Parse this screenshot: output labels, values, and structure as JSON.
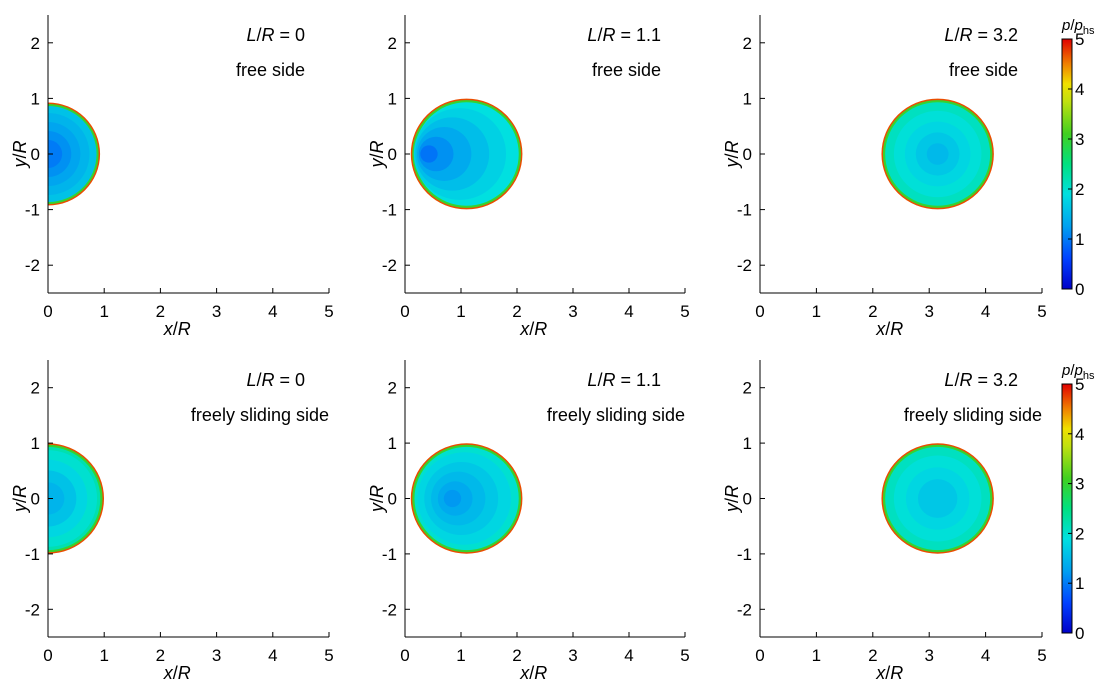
{
  "colors": {
    "colormap": [
      "#0000c8",
      "#0050f0",
      "#00a0f0",
      "#00e0e0",
      "#00e090",
      "#30d030",
      "#a0e020",
      "#f0e000",
      "#f08000",
      "#e00000"
    ],
    "axis": "#000000"
  },
  "chart_data": [
    {
      "type": "heatmap",
      "row": 0,
      "col": 0,
      "annotations": [
        "L/R = 0",
        "free side"
      ],
      "xlabel": "x/R",
      "ylabel": "y/R",
      "xlim": [
        0,
        5
      ],
      "ylim": [
        -2.5,
        2.5
      ],
      "xticks": [
        0,
        1,
        2,
        3,
        4,
        5
      ],
      "yticks": [
        -2,
        -1,
        0,
        1,
        2
      ],
      "contact": {
        "center_x": 0,
        "radius": 0.9,
        "half_domain": true
      },
      "pressure_levels": [
        {
          "p": 1.6,
          "r": 1.0
        },
        {
          "p": 1.45,
          "r": 0.82
        },
        {
          "p": 1.3,
          "r": 0.64
        },
        {
          "p": 1.15,
          "r": 0.46
        },
        {
          "p": 1.0,
          "r": 0.28
        }
      ],
      "peak": {
        "x": 0.0,
        "y": 0.0
      }
    },
    {
      "type": "heatmap",
      "row": 0,
      "col": 1,
      "annotations": [
        "L/R = 1.1",
        "free side"
      ],
      "xlabel": "x/R",
      "ylabel": "y/R",
      "xlim": [
        0,
        5
      ],
      "ylim": [
        -2.5,
        2.5
      ],
      "xticks": [
        0,
        1,
        2,
        3,
        4,
        5
      ],
      "yticks": [
        -2,
        -1,
        0,
        1,
        2
      ],
      "contact": {
        "center_x": 1.1,
        "radius": 0.97,
        "half_domain": false
      },
      "pressure_levels": [
        {
          "p": 1.9,
          "r": 1.0
        },
        {
          "p": 1.75,
          "r": 0.85
        },
        {
          "p": 1.55,
          "r": 0.68
        },
        {
          "p": 1.35,
          "r": 0.5
        },
        {
          "p": 1.15,
          "r": 0.32
        },
        {
          "p": 0.95,
          "r": 0.16
        }
      ],
      "peak": {
        "x": 0.3,
        "y": 0.0
      }
    },
    {
      "type": "heatmap",
      "row": 0,
      "col": 2,
      "annotations": [
        "L/R = 3.2",
        "free side"
      ],
      "xlabel": "x/R",
      "ylabel": "y/R",
      "xlim": [
        0,
        5
      ],
      "ylim": [
        -2.5,
        2.5
      ],
      "xticks": [
        0,
        1,
        2,
        3,
        4,
        5
      ],
      "yticks": [
        -2,
        -1,
        0,
        1,
        2
      ],
      "contact": {
        "center_x": 3.15,
        "radius": 0.97,
        "half_domain": false
      },
      "pressure_levels": [
        {
          "p": 2.1,
          "r": 1.0
        },
        {
          "p": 1.95,
          "r": 0.8
        },
        {
          "p": 1.8,
          "r": 0.6
        },
        {
          "p": 1.65,
          "r": 0.4
        },
        {
          "p": 1.5,
          "r": 0.2
        }
      ],
      "peak": {
        "x": 3.15,
        "y": 0.0
      }
    },
    {
      "type": "heatmap",
      "row": 1,
      "col": 0,
      "annotations": [
        "L/R = 0",
        "freely sliding side"
      ],
      "xlabel": "x/R",
      "ylabel": "y/R",
      "xlim": [
        0,
        5
      ],
      "ylim": [
        -2.5,
        2.5
      ],
      "xticks": [
        0,
        1,
        2,
        3,
        4,
        5
      ],
      "yticks": [
        -2,
        -1,
        0,
        1,
        2
      ],
      "contact": {
        "center_x": 0,
        "radius": 0.97,
        "half_domain": true
      },
      "pressure_levels": [
        {
          "p": 2.2,
          "r": 1.0
        },
        {
          "p": 2.0,
          "r": 0.9
        },
        {
          "p": 1.8,
          "r": 0.72
        },
        {
          "p": 1.6,
          "r": 0.52
        },
        {
          "p": 1.45,
          "r": 0.3
        }
      ],
      "peak": {
        "x": 0.0,
        "y": 0.0
      }
    },
    {
      "type": "heatmap",
      "row": 1,
      "col": 1,
      "annotations": [
        "L/R = 1.1",
        "freely sliding side"
      ],
      "xlabel": "x/R",
      "ylabel": "y/R",
      "xlim": [
        0,
        5
      ],
      "ylim": [
        -2.5,
        2.5
      ],
      "xticks": [
        0,
        1,
        2,
        3,
        4,
        5
      ],
      "yticks": [
        -2,
        -1,
        0,
        1,
        2
      ],
      "contact": {
        "center_x": 1.1,
        "radius": 0.97,
        "half_domain": false
      },
      "pressure_levels": [
        {
          "p": 2.0,
          "r": 1.0
        },
        {
          "p": 1.8,
          "r": 0.86
        },
        {
          "p": 1.65,
          "r": 0.68
        },
        {
          "p": 1.5,
          "r": 0.5
        },
        {
          "p": 1.35,
          "r": 0.32
        },
        {
          "p": 1.2,
          "r": 0.16
        }
      ],
      "peak": {
        "x": 0.8,
        "y": 0.0
      }
    },
    {
      "type": "heatmap",
      "row": 1,
      "col": 2,
      "annotations": [
        "L/R = 3.2",
        "freely sliding side"
      ],
      "xlabel": "x/R",
      "ylabel": "y/R",
      "xlim": [
        0,
        5
      ],
      "ylim": [
        -2.5,
        2.5
      ],
      "xticks": [
        0,
        1,
        2,
        3,
        4,
        5
      ],
      "yticks": [
        -2,
        -1,
        0,
        1,
        2
      ],
      "contact": {
        "center_x": 3.15,
        "radius": 0.97,
        "half_domain": false
      },
      "pressure_levels": [
        {
          "p": 2.1,
          "r": 1.0
        },
        {
          "p": 1.95,
          "r": 0.8
        },
        {
          "p": 1.8,
          "r": 0.58
        },
        {
          "p": 1.65,
          "r": 0.36
        }
      ],
      "peak": {
        "x": 3.15,
        "y": 0.0
      }
    }
  ],
  "colorbar": {
    "label_main": "p/p",
    "label_sub": "hs",
    "range": [
      0,
      5
    ],
    "ticks": [
      0,
      1,
      2,
      3,
      4,
      5
    ]
  }
}
